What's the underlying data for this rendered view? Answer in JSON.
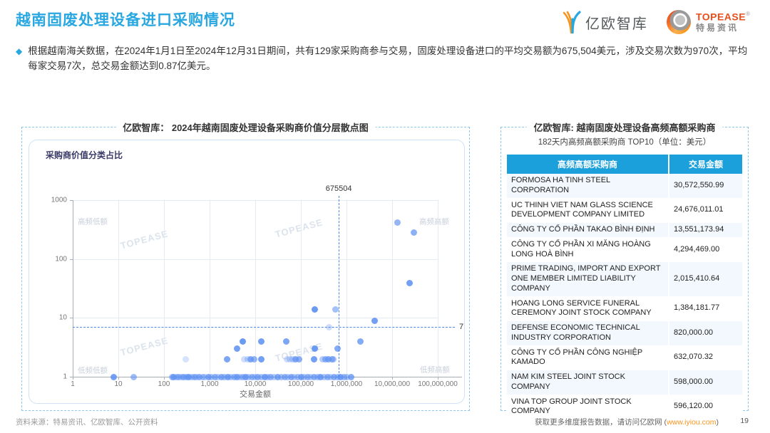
{
  "header": {
    "title": "越南固废处理设备进口采购情况",
    "logo_eo": "亿欧智库",
    "logo_topease_en": "TOPEASE",
    "logo_topease_reg": "®",
    "logo_topease_cn": "特易资讯"
  },
  "summary": {
    "bullet": "◆",
    "text": "根据越南海关数据，在2024年1月1日至2024年12月31日期间，共有129家采购商参与交易，固废处理设备进口的平均交易额为675,504美元，涉及交易次数为970次，平均每家交易7次，总交易金额达到0.87亿美元。"
  },
  "scatter_panel": {
    "title": "亿欧智库： 2024年越南固废处理设备采购商价值分层散点图",
    "chart_label": "采购商价值分类占比",
    "xlabel": "交易金额",
    "watermark": "TOPEASE",
    "mean_x_label": "675504",
    "mean_y_label": "7",
    "quadrants": {
      "tl": "高频低额",
      "tr": "高频高额",
      "bl": "低频低额",
      "br": "低频高额"
    }
  },
  "table_panel": {
    "title": "亿欧智库: 越南固废处理设备高频高额采购商",
    "subtitle": "182天内高频高额采购商 TOP10（单位：美元）",
    "columns": [
      "高频高额采购商",
      "交易金额"
    ],
    "rows": [
      {
        "name": "FORMOSA HA TINH STEEL CORPORATION",
        "amount": "30,572,550.99"
      },
      {
        "name": "UC THINH VIET NAM GLASS SCIENCE DEVELOPMENT COMPANY LIMITED",
        "amount": "24,676,011.01"
      },
      {
        "name": "CÔNG TY CỔ PHẦN TAKAO BÌNH ĐỊNH",
        "amount": "13,551,173.94"
      },
      {
        "name": "CÔNG TY CỔ PHẦN XI MĂNG HOÀNG LONG HOÀ BÌNH",
        "amount": "4,294,469.00"
      },
      {
        "name": "PRIME TRADING, IMPORT AND EXPORT ONE MEMBER LIMITED LIABILITY COMPANY",
        "amount": "2,015,410.64"
      },
      {
        "name": "HOANG LONG SERVICE FUNERAL CEREMONY JOINT STOCK COMPANY",
        "amount": "1,384,181.77"
      },
      {
        "name": "DEFENSE ECONOMIC TECHNICAL INDUSTRY CORPORATION",
        "amount": "820,000.00"
      },
      {
        "name": "CÔNG TY CỔ PHẦN CÔNG NGHIỆP KAMADO",
        "amount": "632,070.32"
      },
      {
        "name": "NAM KIM STEEL JOINT STOCK COMPANY",
        "amount": "598,000.00"
      },
      {
        "name": "VINA TOP GROUP JOINT STOCK COMPANY",
        "amount": "596,120.00"
      }
    ]
  },
  "footer": {
    "source": "资料来源：特易资讯、亿欧智库、公开资料",
    "promo_prefix": "获取更多维度报告数据，请访问亿欧网 (",
    "promo_link": "www.iyiou.com",
    "promo_suffix": ")",
    "page": "19"
  },
  "colors": {
    "accent_blue": "#29a7e1",
    "table_header_blue": "#1ba0dc",
    "dash_line_blue": "#4d87e5",
    "link_orange": "#f7941d",
    "topease_orange": "#e94e1b",
    "quadrant_gray": "#c8ceda"
  },
  "chart_data": {
    "type": "scatter",
    "title": "2024年越南固废处理设备采购商价值分层散点图",
    "xlabel": "交易金额",
    "ylabel": "",
    "x_scale": "log",
    "y_scale": "log",
    "xlim": [
      1,
      100000000
    ],
    "ylim": [
      1,
      1000
    ],
    "x_ticks": [
      "1",
      "10",
      "100",
      "1,000",
      "10,000",
      "100,000",
      "1,000,000",
      "10,000,000",
      "100,000,000"
    ],
    "y_ticks": [
      "1",
      "10",
      "100",
      "1000"
    ],
    "grid": true,
    "mean_x": 675504,
    "mean_y": 7,
    "quadrant_labels": [
      "高频低额",
      "高频高额",
      "低频低额",
      "低频高额"
    ],
    "point_rgb": [
      91,
      143,
      242
    ],
    "points": [
      [
        8,
        1,
        0.85
      ],
      [
        22,
        1,
        0.6
      ],
      [
        150,
        1,
        0.55
      ],
      [
        165,
        1,
        0.75
      ],
      [
        185,
        1,
        0.5
      ],
      [
        210,
        1,
        0.65
      ],
      [
        240,
        1,
        0.45
      ],
      [
        270,
        1,
        0.7
      ],
      [
        310,
        1,
        0.55
      ],
      [
        350,
        1,
        0.8
      ],
      [
        400,
        1,
        0.5
      ],
      [
        460,
        1,
        0.65
      ],
      [
        520,
        1,
        0.45
      ],
      [
        600,
        1,
        0.7
      ],
      [
        700,
        1,
        0.55
      ],
      [
        800,
        1,
        0.4
      ],
      [
        950,
        1,
        0.75
      ],
      [
        1100,
        1,
        0.5
      ],
      [
        1300,
        1,
        0.65
      ],
      [
        1500,
        1,
        0.45
      ],
      [
        1800,
        1,
        0.7
      ],
      [
        2100,
        1,
        0.55
      ],
      [
        2500,
        1,
        0.8
      ],
      [
        2900,
        1,
        0.5
      ],
      [
        3400,
        1,
        0.65
      ],
      [
        4000,
        1,
        0.75
      ],
      [
        4600,
        1,
        0.45
      ],
      [
        5300,
        1,
        0.6
      ],
      [
        6200,
        1,
        0.8
      ],
      [
        7200,
        1,
        0.5
      ],
      [
        8400,
        1,
        0.65
      ],
      [
        9800,
        1,
        0.45
      ],
      [
        11500,
        1,
        0.7
      ],
      [
        13500,
        1,
        0.55
      ],
      [
        16000,
        1,
        0.8
      ],
      [
        19000,
        1,
        0.5
      ],
      [
        22000,
        1,
        0.65
      ],
      [
        26000,
        1,
        0.45
      ],
      [
        31000,
        1,
        0.75
      ],
      [
        37000,
        1,
        0.55
      ],
      [
        44000,
        1,
        0.65
      ],
      [
        52000,
        1,
        0.5
      ],
      [
        61000,
        1,
        0.7
      ],
      [
        72000,
        1,
        0.45
      ],
      [
        85000,
        1,
        0.6
      ],
      [
        100000,
        1,
        0.75
      ],
      [
        118000,
        1,
        0.5
      ],
      [
        140000,
        1,
        0.65
      ],
      [
        165000,
        1,
        0.45
      ],
      [
        195000,
        1,
        0.7
      ],
      [
        230000,
        1,
        0.55
      ],
      [
        270000,
        1,
        0.8
      ],
      [
        320000,
        1,
        0.5
      ],
      [
        380000,
        1,
        0.65
      ],
      [
        450000,
        1,
        0.45
      ],
      [
        530000,
        1,
        0.7
      ],
      [
        630000,
        1,
        0.55
      ],
      [
        740000,
        1,
        0.8
      ],
      [
        870000,
        1,
        0.6
      ],
      [
        1000000,
        1,
        0.5
      ],
      [
        1250000,
        1,
        0.75
      ],
      [
        300,
        2,
        0.25
      ],
      [
        2400,
        2,
        0.8
      ],
      [
        5800,
        2,
        0.3
      ],
      [
        6800,
        2,
        0.35
      ],
      [
        8000,
        2,
        0.75
      ],
      [
        9500,
        2,
        0.65
      ],
      [
        13500,
        2,
        0.85
      ],
      [
        50000,
        2,
        0.3
      ],
      [
        57000,
        2,
        0.35
      ],
      [
        65000,
        2,
        0.4
      ],
      [
        75000,
        2,
        0.75
      ],
      [
        90000,
        2,
        0.7
      ],
      [
        195000,
        2,
        0.85
      ],
      [
        300000,
        2,
        0.45
      ],
      [
        340000,
        2,
        0.65
      ],
      [
        400000,
        2,
        0.75
      ],
      [
        470000,
        2,
        0.6
      ],
      [
        520000,
        2,
        0.55
      ],
      [
        4000,
        3,
        0.85
      ],
      [
        200000,
        3,
        0.9
      ],
      [
        630000,
        3,
        0.75
      ],
      [
        5300,
        4,
        0.9
      ],
      [
        13800,
        4,
        0.85
      ],
      [
        48000,
        4,
        0.8
      ],
      [
        2000000,
        4,
        0.75
      ],
      [
        200000,
        14,
        0.9
      ],
      [
        570000,
        14,
        0.55
      ],
      [
        4200000,
        9,
        0.85
      ],
      [
        420000,
        7,
        0.3
      ],
      [
        13000000,
        420,
        0.65
      ],
      [
        30000000,
        280,
        0.7
      ],
      [
        24000000,
        39,
        0.85
      ]
    ]
  }
}
